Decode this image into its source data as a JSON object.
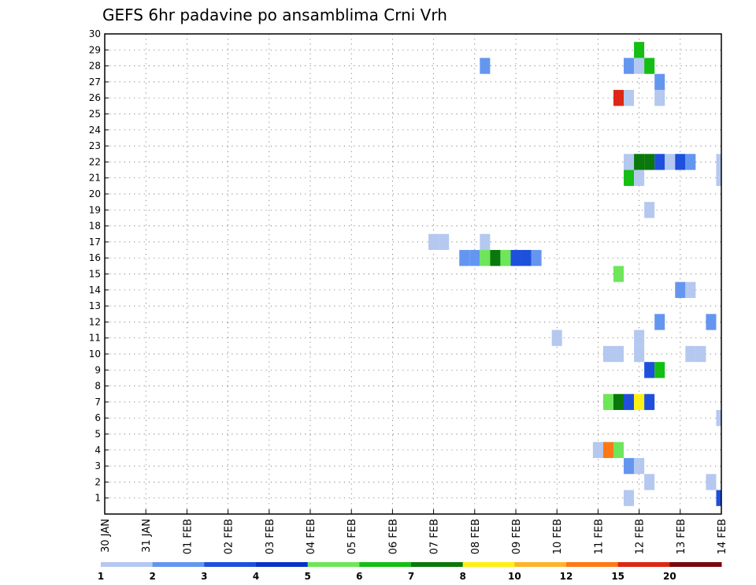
{
  "chart_data": {
    "type": "heatmap",
    "title": "GEFS 6hr padavine po ansamblima Crni Vrh",
    "x_tick_labels": [
      "30 JAN",
      "31 JAN",
      "01 FEB",
      "02 FEB",
      "03 FEB",
      "04 FEB",
      "05 FEB",
      "06 FEB",
      "07 FEB",
      "08 FEB",
      "09 FEB",
      "10 FEB",
      "11 FEB",
      "12 FEB",
      "13 FEB",
      "14 FEB"
    ],
    "y_tick_labels": [
      "1",
      "2",
      "3",
      "4",
      "5",
      "6",
      "7",
      "8",
      "9",
      "10",
      "11",
      "12",
      "13",
      "14",
      "15",
      "16",
      "17",
      "18",
      "19",
      "20",
      "21",
      "22",
      "23",
      "24",
      "25",
      "26",
      "27",
      "28",
      "29",
      "30"
    ],
    "xlim": [
      0,
      60
    ],
    "ylim": [
      0,
      30
    ],
    "x_unit_note": "6-hour steps from 30 JAN 00Z",
    "grid": true,
    "legend_levels": [
      "1",
      "2",
      "3",
      "4",
      "5",
      "6",
      "7",
      "8",
      "10",
      "12",
      "15",
      "20"
    ],
    "legend_colors": [
      "#b4c8f0",
      "#6496f0",
      "#1e50dc",
      "#0a32c8",
      "#6ee65a",
      "#14be14",
      "#0a780a",
      "#fff014",
      "#ffb428",
      "#ff7814",
      "#dc2814",
      "#780a0a"
    ],
    "cells": [
      {
        "member": 29,
        "steps": [
          52
        ],
        "level": 6
      },
      {
        "member": 28,
        "steps": [
          37
        ],
        "level": 2
      },
      {
        "member": 28,
        "steps": [
          51
        ],
        "level": 2
      },
      {
        "member": 28,
        "steps": [
          52
        ],
        "level": 1
      },
      {
        "member": 28,
        "steps": [
          53
        ],
        "level": 6
      },
      {
        "member": 27,
        "steps": [
          54
        ],
        "level": 2
      },
      {
        "member": 26,
        "steps": [
          50
        ],
        "level": 15
      },
      {
        "member": 26,
        "steps": [
          51
        ],
        "level": 1
      },
      {
        "member": 26,
        "steps": [
          54
        ],
        "level": 1
      },
      {
        "member": 22,
        "steps": [
          51
        ],
        "level": 1
      },
      {
        "member": 22,
        "steps": [
          52,
          53
        ],
        "level": 7
      },
      {
        "member": 22,
        "steps": [
          54
        ],
        "level": 3
      },
      {
        "member": 22,
        "steps": [
          55
        ],
        "level": 1
      },
      {
        "member": 22,
        "steps": [
          56
        ],
        "level": 3
      },
      {
        "member": 22,
        "steps": [
          57
        ],
        "level": 2
      },
      {
        "member": 22,
        "steps": [
          60
        ],
        "level": 1
      },
      {
        "member": 21,
        "steps": [
          51
        ],
        "level": 6
      },
      {
        "member": 21,
        "steps": [
          52
        ],
        "level": 1
      },
      {
        "member": 21,
        "steps": [
          60
        ],
        "level": 1
      },
      {
        "member": 19,
        "steps": [
          53
        ],
        "level": 1
      },
      {
        "member": 17,
        "steps": [
          32,
          33
        ],
        "level": 1
      },
      {
        "member": 17,
        "steps": [
          37
        ],
        "level": 1
      },
      {
        "member": 16,
        "steps": [
          35,
          36
        ],
        "level": 2
      },
      {
        "member": 16,
        "steps": [
          37
        ],
        "level": 5
      },
      {
        "member": 16,
        "steps": [
          38
        ],
        "level": 7
      },
      {
        "member": 16,
        "steps": [
          39
        ],
        "level": 5
      },
      {
        "member": 16,
        "steps": [
          40,
          41
        ],
        "level": 3
      },
      {
        "member": 16,
        "steps": [
          42
        ],
        "level": 2
      },
      {
        "member": 15,
        "steps": [
          50
        ],
        "level": 5
      },
      {
        "member": 14,
        "steps": [
          56
        ],
        "level": 2
      },
      {
        "member": 14,
        "steps": [
          57
        ],
        "level": 1
      },
      {
        "member": 12,
        "steps": [
          54
        ],
        "level": 2
      },
      {
        "member": 12,
        "steps": [
          59
        ],
        "level": 2
      },
      {
        "member": 11,
        "steps": [
          44
        ],
        "level": 1
      },
      {
        "member": 11,
        "steps": [
          52
        ],
        "level": 1
      },
      {
        "member": 10,
        "steps": [
          49,
          50
        ],
        "level": 1
      },
      {
        "member": 10,
        "steps": [
          52
        ],
        "level": 1
      },
      {
        "member": 10,
        "steps": [
          57,
          58
        ],
        "level": 1
      },
      {
        "member": 9,
        "steps": [
          53
        ],
        "level": 3
      },
      {
        "member": 9,
        "steps": [
          54
        ],
        "level": 6
      },
      {
        "member": 7,
        "steps": [
          49
        ],
        "level": 5
      },
      {
        "member": 7,
        "steps": [
          50
        ],
        "level": 7
      },
      {
        "member": 7,
        "steps": [
          51
        ],
        "level": 3
      },
      {
        "member": 7,
        "steps": [
          52
        ],
        "level": 8
      },
      {
        "member": 7,
        "steps": [
          53
        ],
        "level": 3
      },
      {
        "member": 6,
        "steps": [
          60
        ],
        "level": 1
      },
      {
        "member": 4,
        "steps": [
          48
        ],
        "level": 1
      },
      {
        "member": 4,
        "steps": [
          49
        ],
        "level": 12
      },
      {
        "member": 4,
        "steps": [
          50
        ],
        "level": 5
      },
      {
        "member": 3,
        "steps": [
          51
        ],
        "level": 2
      },
      {
        "member": 3,
        "steps": [
          52
        ],
        "level": 1
      },
      {
        "member": 2,
        "steps": [
          53
        ],
        "level": 1
      },
      {
        "member": 2,
        "steps": [
          59
        ],
        "level": 1
      },
      {
        "member": 1,
        "steps": [
          51
        ],
        "level": 1
      },
      {
        "member": 1,
        "steps": [
          60
        ],
        "level": 3
      }
    ]
  }
}
